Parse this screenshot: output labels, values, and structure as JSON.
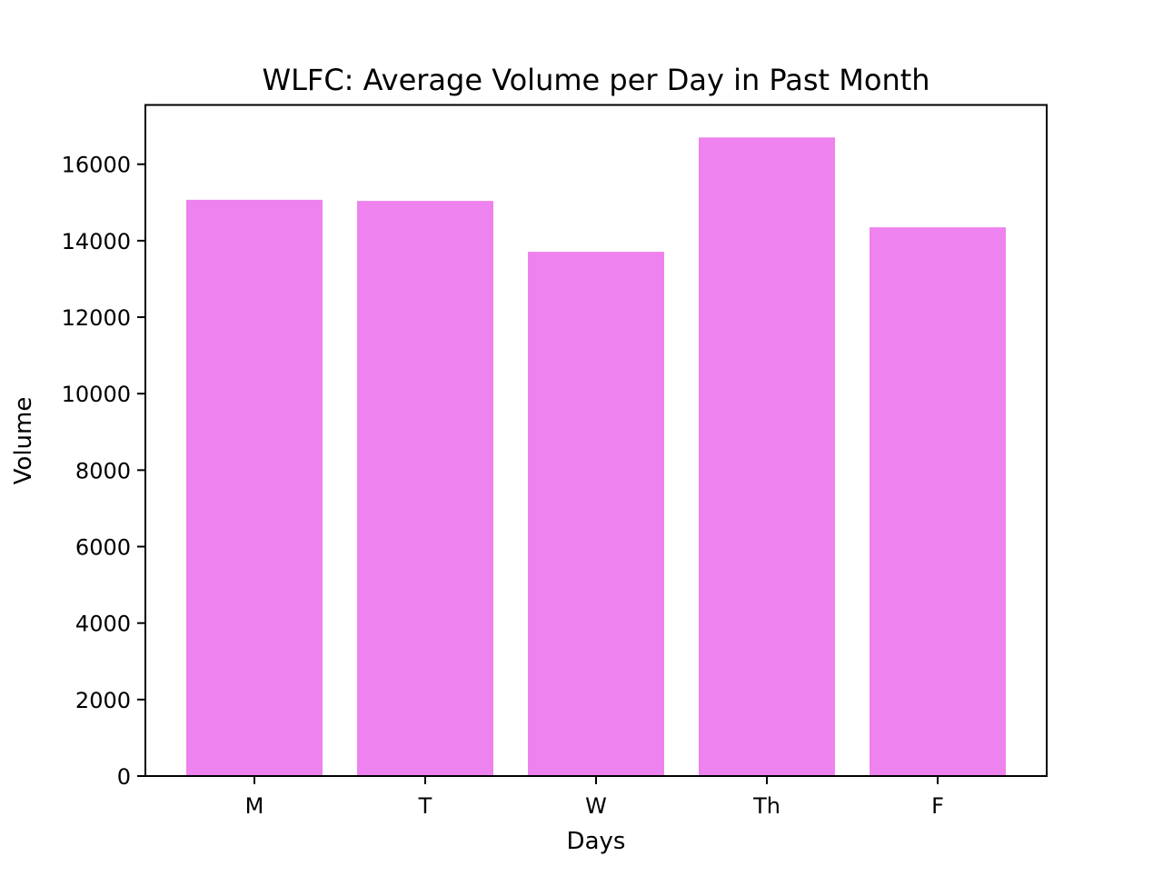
{
  "chart_data": {
    "type": "bar",
    "title": "WLFC: Average Volume per Day in Past Month",
    "xlabel": "Days",
    "ylabel": "Volume",
    "categories": [
      "M",
      "T",
      "W",
      "Th",
      "F"
    ],
    "values": [
      15070,
      15040,
      13710,
      16700,
      14350
    ],
    "ylim": [
      0,
      17550
    ],
    "yticks": [
      0,
      2000,
      4000,
      6000,
      8000,
      10000,
      12000,
      14000,
      16000
    ],
    "bar_color": "#ee82ee",
    "grid": false,
    "legend": "none"
  }
}
